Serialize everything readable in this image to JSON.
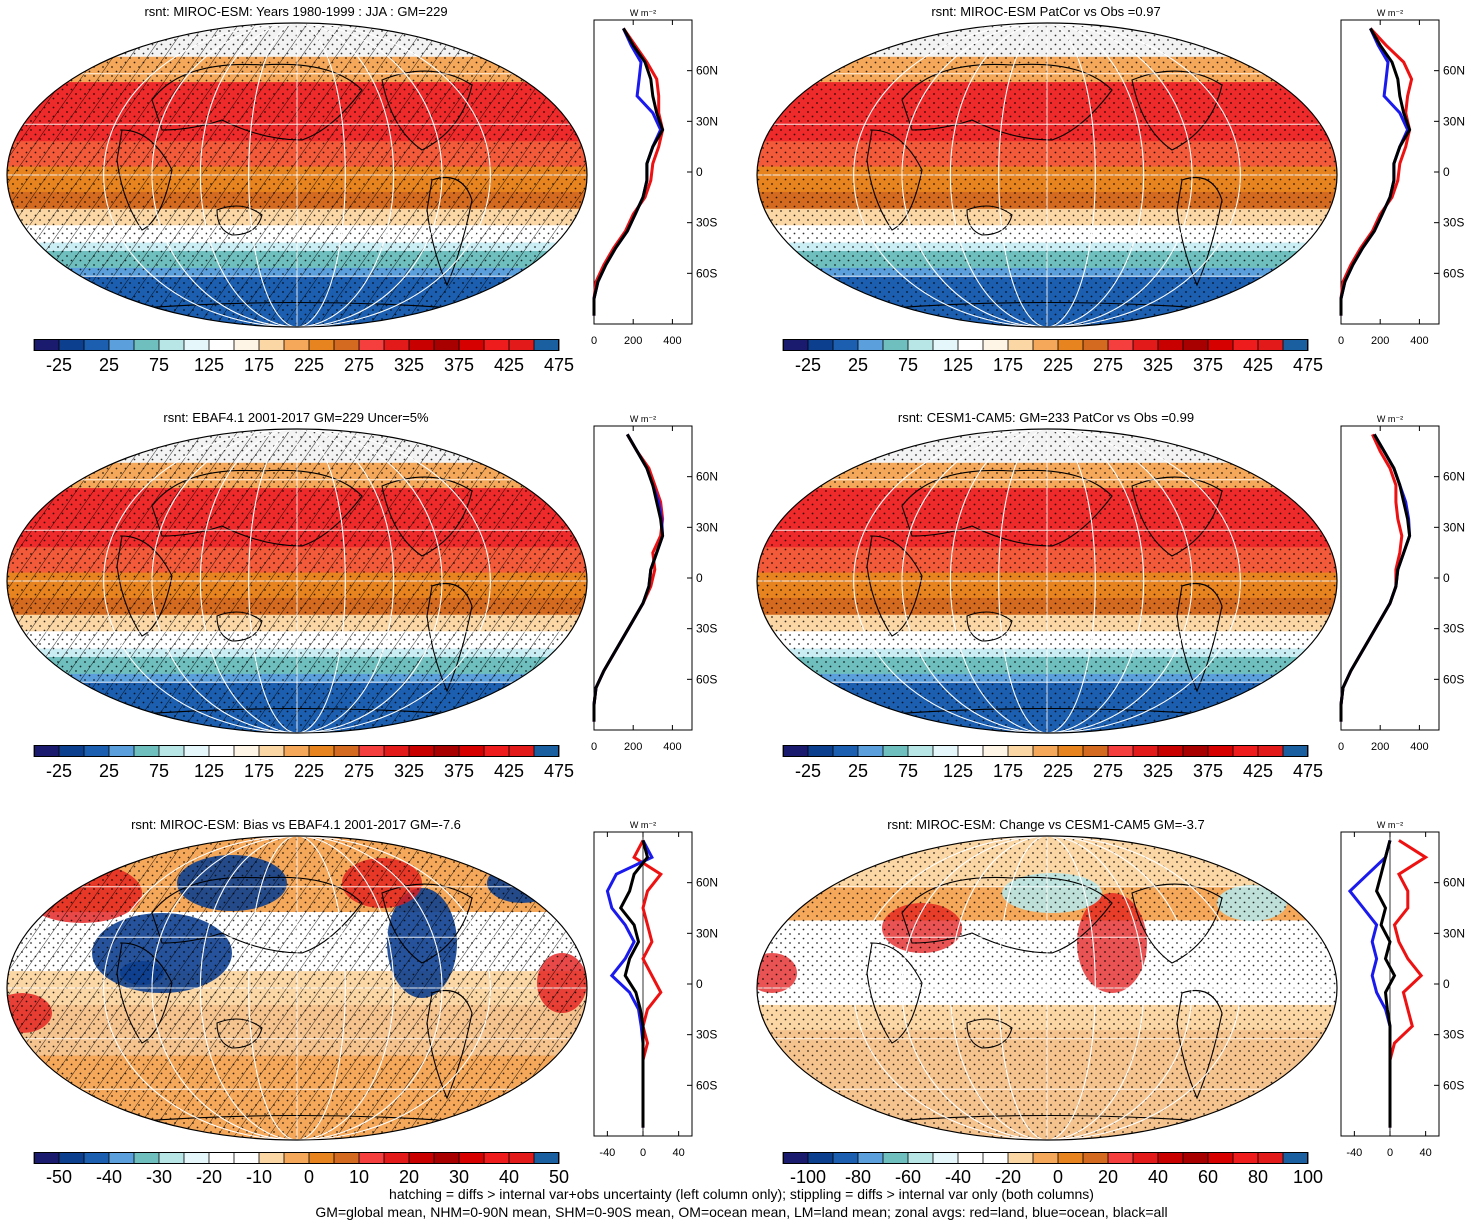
{
  "footer": {
    "line1": "hatching = diffs > internal var+obs uncertainty (left column only); stippling = diffs > internal var only (both columns)",
    "line2": "GM=global mean, NHM=0-90N mean, SHM=0-90S mean, OM=ocean mean, LM=land mean; zonal avgs: red=land, blue=ocean, black=all"
  },
  "zonal_unit": "W m⁻²",
  "lat_labels": [
    "60N",
    "30N",
    "0",
    "30S",
    "60S"
  ],
  "colorbars": {
    "abs": {
      "labels": [
        "-25",
        "25",
        "75",
        "125",
        "175",
        "225",
        "275",
        "325",
        "375",
        "425",
        "475"
      ],
      "colors": [
        "#1a1a6e",
        "#0d3f8f",
        "#1c5fb0",
        "#5b9fdc",
        "#6fbfbf",
        "#b8e6e6",
        "#e6f7fb",
        "#ffffff",
        "#fff5e6",
        "#fbd7a5",
        "#f5a85a",
        "#e8841f",
        "#d46a1f",
        "#f53f3f",
        "#e31a1a",
        "#c80000",
        "#a80000",
        "#d60000",
        "#ee1c1c",
        "#e31a1a",
        "#1a5fa0"
      ]
    },
    "bias": {
      "labels": [
        "-50",
        "-40",
        "-30",
        "-20",
        "-10",
        "0",
        "10",
        "20",
        "30",
        "40",
        "50"
      ],
      "colors": [
        "#1a1a6e",
        "#0d3f8f",
        "#1c5fb0",
        "#5b9fdc",
        "#6fbfbf",
        "#b8e6e6",
        "#e6f7fb",
        "#ffffff",
        "#ffffff",
        "#fbd7a5",
        "#f5a85a",
        "#e8841f",
        "#d46a1f",
        "#f53f3f",
        "#e31a1a",
        "#c80000",
        "#a80000",
        "#d60000",
        "#ee1c1c",
        "#e31a1a",
        "#1a5fa0"
      ]
    },
    "change": {
      "labels": [
        "-100",
        "-80",
        "-60",
        "-40",
        "-20",
        "0",
        "20",
        "40",
        "60",
        "80",
        "100"
      ],
      "colors": [
        "#1a1a6e",
        "#0d3f8f",
        "#1c5fb0",
        "#5b9fdc",
        "#6fbfbf",
        "#b8e6e6",
        "#e6f7fb",
        "#ffffff",
        "#ffffff",
        "#fbd7a5",
        "#f5a85a",
        "#e8841f",
        "#d46a1f",
        "#f53f3f",
        "#e31a1a",
        "#c80000",
        "#a80000",
        "#d60000",
        "#ee1c1c",
        "#e31a1a",
        "#1a5fa0"
      ]
    }
  },
  "chart_data": [
    {
      "type": "heatmap",
      "title": "rsnt: MIROC-ESM: Years 1980-1999 : JJA : GM=229",
      "colorbar": "abs",
      "style": "abs",
      "hatch": true,
      "zonal": {
        "xticks": [
          "0",
          "200",
          "400"
        ],
        "xlim": [
          0,
          500
        ],
        "lat": [
          85,
          75,
          65,
          55,
          45,
          35,
          25,
          15,
          5,
          -5,
          -15,
          -25,
          -35,
          -45,
          -55,
          -65,
          -75,
          -85
        ],
        "all": [
          150,
          200,
          260,
          290,
          300,
          320,
          350,
          300,
          270,
          270,
          250,
          210,
          170,
          110,
          60,
          20,
          0,
          0
        ],
        "land": [
          150,
          210,
          270,
          320,
          330,
          330,
          350,
          330,
          300,
          290,
          260,
          200,
          160,
          100,
          50,
          10,
          0,
          0
        ],
        "ocean": [
          150,
          190,
          240,
          230,
          220,
          300,
          340,
          300,
          270,
          270,
          250,
          210,
          170,
          110,
          60,
          20,
          0,
          0
        ]
      }
    },
    {
      "type": "heatmap",
      "title": "rsnt: MIROC-ESM PatCor vs Obs =0.97",
      "colorbar": "abs",
      "style": "abs",
      "hatch": false,
      "zonal": {
        "xticks": [
          "0",
          "200",
          "400"
        ],
        "xlim": [
          0,
          500
        ],
        "lat": [
          85,
          75,
          65,
          55,
          45,
          35,
          25,
          15,
          5,
          -5,
          -15,
          -25,
          -35,
          -45,
          -55,
          -65,
          -75,
          -85
        ],
        "all": [
          150,
          200,
          260,
          290,
          300,
          320,
          350,
          300,
          270,
          270,
          250,
          210,
          170,
          110,
          60,
          20,
          0,
          0
        ],
        "land": [
          150,
          230,
          320,
          360,
          340,
          330,
          350,
          330,
          300,
          290,
          260,
          200,
          160,
          100,
          50,
          10,
          0,
          0
        ],
        "ocean": [
          150,
          190,
          240,
          230,
          220,
          300,
          340,
          300,
          270,
          270,
          250,
          210,
          170,
          110,
          60,
          20,
          0,
          0
        ]
      }
    },
    {
      "type": "heatmap",
      "title": "rsnt: EBAF4.1 2001-2017 GM=229 Uncer=5%",
      "colorbar": "abs",
      "style": "abs",
      "hatch": true,
      "zonal": {
        "xticks": [
          "0",
          "200",
          "400"
        ],
        "xlim": [
          0,
          500
        ],
        "lat": [
          85,
          75,
          65,
          55,
          45,
          35,
          25,
          15,
          5,
          -5,
          -15,
          -25,
          -35,
          -45,
          -55,
          -65,
          -75,
          -85
        ],
        "all": [
          170,
          220,
          270,
          300,
          320,
          340,
          350,
          320,
          290,
          280,
          250,
          200,
          150,
          100,
          50,
          10,
          0,
          0
        ],
        "land": [
          170,
          220,
          280,
          310,
          340,
          350,
          340,
          300,
          310,
          290,
          250,
          200,
          150,
          100,
          50,
          10,
          0,
          0
        ],
        "ocean": [
          170,
          220,
          270,
          300,
          330,
          345,
          350,
          320,
          290,
          280,
          250,
          200,
          150,
          100,
          50,
          10,
          0,
          0
        ]
      }
    },
    {
      "type": "heatmap",
      "title": "rsnt: CESM1-CAM5: GM=233 PatCor vs Obs =0.99",
      "colorbar": "abs",
      "style": "abs",
      "hatch": false,
      "zonal": {
        "xticks": [
          "0",
          "200",
          "400"
        ],
        "xlim": [
          0,
          500
        ],
        "lat": [
          85,
          75,
          65,
          55,
          45,
          35,
          25,
          15,
          5,
          -5,
          -15,
          -25,
          -35,
          -45,
          -55,
          -65,
          -75,
          -85
        ],
        "all": [
          170,
          220,
          270,
          300,
          320,
          340,
          350,
          320,
          290,
          280,
          250,
          200,
          150,
          100,
          50,
          10,
          0,
          0
        ],
        "land": [
          160,
          200,
          250,
          280,
          280,
          290,
          310,
          300,
          280,
          280,
          250,
          200,
          150,
          100,
          50,
          10,
          0,
          0
        ],
        "ocean": [
          170,
          220,
          270,
          300,
          330,
          345,
          350,
          320,
          290,
          280,
          250,
          200,
          150,
          100,
          50,
          10,
          0,
          0
        ]
      }
    },
    {
      "type": "heatmap",
      "title": "rsnt: MIROC-ESM: Bias vs EBAF4.1 2001-2017 GM=-7.6",
      "colorbar": "bias",
      "style": "bias",
      "hatch": true,
      "zonal": {
        "xticks": [
          "-40",
          "0",
          "40"
        ],
        "xlim": [
          -55,
          55
        ],
        "lat": [
          85,
          75,
          65,
          55,
          45,
          35,
          25,
          15,
          5,
          -5,
          -15,
          -25,
          -35,
          -45,
          -55,
          -65,
          -75,
          -85
        ],
        "all": [
          0,
          5,
          -10,
          -15,
          -25,
          -10,
          -5,
          -15,
          -20,
          -8,
          -3,
          0,
          0,
          0,
          0,
          0,
          0,
          0
        ],
        "land": [
          0,
          -10,
          20,
          5,
          0,
          5,
          10,
          0,
          10,
          20,
          5,
          0,
          5,
          0,
          0,
          0,
          0,
          0
        ],
        "ocean": [
          0,
          10,
          -30,
          -40,
          -35,
          -20,
          -10,
          -20,
          -35,
          -15,
          -5,
          -2,
          0,
          0,
          0,
          0,
          0,
          0
        ]
      }
    },
    {
      "type": "heatmap",
      "title": "rsnt: MIROC-ESM: Change vs CESM1-CAM5 GM=-3.7",
      "colorbar": "change",
      "style": "change",
      "hatch": false,
      "zonal": {
        "xticks": [
          "-40",
          "0",
          "40"
        ],
        "xlim": [
          -55,
          55
        ],
        "lat": [
          85,
          75,
          65,
          55,
          45,
          35,
          25,
          15,
          5,
          -5,
          -15,
          -25,
          -35,
          -45,
          -55,
          -65,
          -75,
          -85
        ],
        "all": [
          0,
          -5,
          -10,
          -15,
          -5,
          -10,
          0,
          -5,
          5,
          -5,
          -3,
          0,
          0,
          0,
          0,
          0,
          0,
          0
        ],
        "land": [
          10,
          40,
          10,
          20,
          20,
          5,
          10,
          20,
          35,
          15,
          20,
          25,
          5,
          0,
          0,
          0,
          0,
          0
        ],
        "ocean": [
          0,
          -5,
          -25,
          -45,
          -30,
          -15,
          -20,
          -15,
          -20,
          -15,
          -5,
          0,
          0,
          0,
          0,
          0,
          0,
          0
        ]
      }
    }
  ]
}
